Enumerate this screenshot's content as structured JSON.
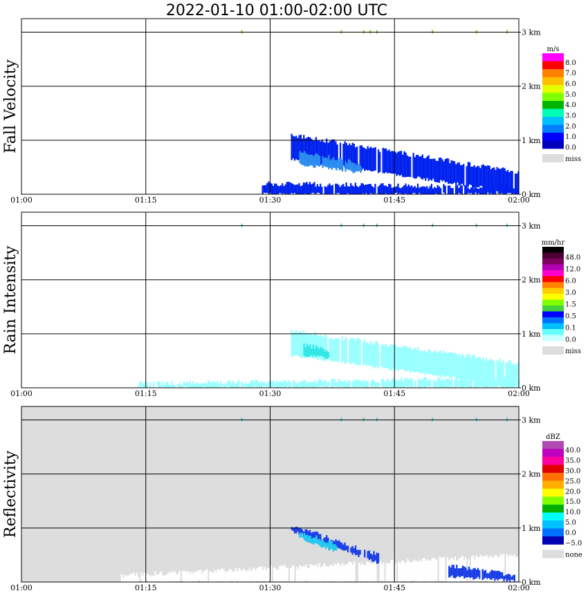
{
  "chart_data": {
    "type": "heatmap",
    "title": "2022-01-10   01:00-02:00 UTC",
    "x_ticks": [
      "01:00",
      "01:15",
      "01:30",
      "01:45",
      "02:00"
    ],
    "y_ticks": [
      "3 km",
      "2 km",
      "1 km",
      "0 km"
    ],
    "y_range_km": [
      0,
      3.25
    ],
    "x_range_min": [
      0,
      60
    ],
    "grid": true,
    "panels": [
      {
        "name": "Fall Velocity",
        "background": "#ffffff",
        "legend": {
          "unit": "m/s",
          "colors": [
            "#ff00ff",
            "#ff0000",
            "#ff7f00",
            "#ffbf00",
            "#e6ff00",
            "#7fff00",
            "#00b400",
            "#00ffb4",
            "#00bfff",
            "#007fff",
            "#0000ff",
            "#0000bf"
          ],
          "labels": [
            "8.0",
            "7.0",
            "6.0",
            "5.0",
            "4.0",
            "3.0",
            "2.0",
            "1.0",
            "0.0"
          ],
          "missing": "miss"
        },
        "features": [
          {
            "desc": "main rain band",
            "t_start": 32.5,
            "t_end": 60,
            "h_top_start": 1.1,
            "h_top_end": 0.4,
            "h_bot_start": 0.65,
            "h_bot_end": 0.02,
            "color": "#0022ee"
          },
          {
            "desc": "inner core",
            "t_start": 33.5,
            "t_end": 41,
            "h_top_start": 0.8,
            "h_top_end": 0.55,
            "h_bot_start": 0.55,
            "h_bot_end": 0.4,
            "color": "#2d8cf0"
          },
          {
            "desc": "near-surface layer",
            "t_start": 29,
            "t_end": 60,
            "h_top_start": 0.2,
            "h_top_end": 0.12,
            "h_bot_start": 0.0,
            "h_bot_end": 0.0,
            "color": "#0022ee"
          }
        ],
        "speckles_min": [
          26.5,
          38.5,
          41.2,
          42.0,
          42.8,
          49.5,
          54.8,
          58.5
        ]
      },
      {
        "name": "Rain Intensity",
        "background": "#ffffff",
        "legend": {
          "unit": "mm/hr",
          "colors": [
            "#000000",
            "#4d0033",
            "#800060",
            "#b300b3",
            "#ff00cc",
            "#ff0000",
            "#ff8000",
            "#ffd000",
            "#ffff00",
            "#80ff00",
            "#40d040",
            "#0000ff",
            "#0070ff",
            "#00c0ff",
            "#66ffff",
            "#c8ffff"
          ],
          "labels": [
            "48.0",
            "12.0",
            "6.0",
            "3.0",
            "1.5",
            "0.5",
            "0.1",
            "0.0"
          ],
          "missing": "miss"
        },
        "features": [
          {
            "desc": "main rain band",
            "t_start": 32.5,
            "t_end": 60,
            "h_top_start": 1.05,
            "h_top_end": 0.45,
            "h_bot_start": 0.6,
            "h_bot_end": 0.02,
            "color": "#99ffff"
          },
          {
            "desc": "inner core",
            "t_start": 34,
            "t_end": 37,
            "h_top_start": 0.8,
            "h_top_end": 0.7,
            "h_bot_start": 0.6,
            "h_bot_end": 0.55,
            "color": "#33e6e6"
          },
          {
            "desc": "near-surface layer",
            "t_start": 14,
            "t_end": 60,
            "h_top_start": 0.08,
            "h_top_end": 0.18,
            "h_bot_start": 0.0,
            "h_bot_end": 0.0,
            "color": "#99ffff"
          }
        ],
        "speckles_min": [
          26.5,
          38.5,
          41.2,
          42.8,
          49.5,
          54.8,
          58.5
        ]
      },
      {
        "name": "Reflectivity",
        "background": "#dddddd",
        "legend": {
          "unit": "dBZ",
          "colors": [
            "#b04ab0",
            "#c000c0",
            "#ff00a0",
            "#e00000",
            "#ff7000",
            "#ffb000",
            "#ffff00",
            "#80ff00",
            "#00b000",
            "#00ffff",
            "#00c0ff",
            "#0070ff",
            "#0000b0"
          ],
          "labels": [
            "40.0",
            "35.0",
            "30.0",
            "25.0",
            "20.0",
            "15.0",
            "10.0",
            "5.0",
            "0.0",
            "−5.0"
          ],
          "missing": "none"
        },
        "features": [
          {
            "desc": "white no-echo area",
            "t_start": 12,
            "t_end": 60,
            "h_top_start": 0.12,
            "h_top_end": 0.5,
            "h_bot_start": 0.0,
            "h_bot_end": 0.0,
            "color": "#ffffff"
          },
          {
            "desc": "main echo",
            "t_start": 32.5,
            "t_end": 43,
            "h_top_start": 1.05,
            "h_top_end": 0.5,
            "h_bot_start": 0.95,
            "h_bot_end": 0.35,
            "color": "#1a3fe6"
          },
          {
            "desc": "echo core",
            "t_start": 33.5,
            "t_end": 38,
            "h_top_start": 0.92,
            "h_top_end": 0.7,
            "h_bot_start": 0.82,
            "h_bot_end": 0.55,
            "color": "#22c8f0"
          },
          {
            "desc": "lower echo",
            "t_start": 51.5,
            "t_end": 59.5,
            "h_top_start": 0.3,
            "h_top_end": 0.12,
            "h_bot_start": 0.1,
            "h_bot_end": 0.02,
            "color": "#1a3fe6"
          }
        ],
        "speckles_min": [
          26.5,
          38.5,
          41.2,
          42.8,
          49.5,
          54.8,
          58.5
        ]
      }
    ]
  }
}
